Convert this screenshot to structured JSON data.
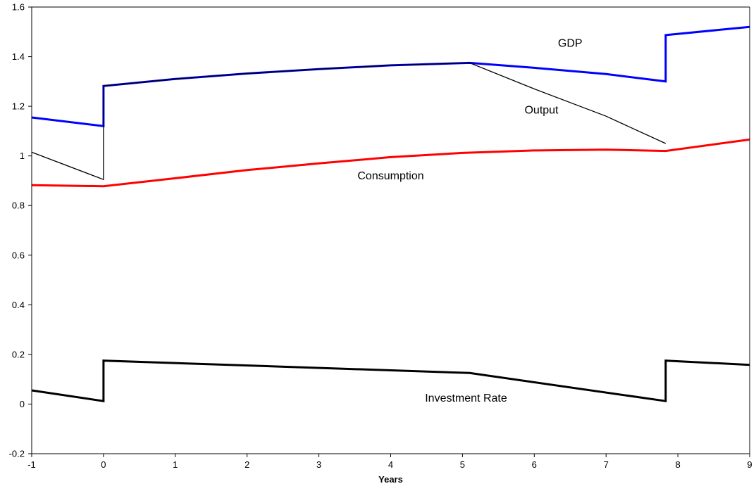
{
  "chart_data": {
    "type": "line",
    "title": "",
    "xlabel": "Years",
    "ylabel": "",
    "xlim": [
      -1,
      9
    ],
    "ylim": [
      -0.2,
      1.6
    ],
    "x_ticks": [
      "-1",
      "0",
      "1",
      "2",
      "3",
      "4",
      "5",
      "6",
      "7",
      "8",
      "9"
    ],
    "y_ticks": [
      "-0.2",
      "0",
      "0.2",
      "0.4",
      "0.6",
      "0.8",
      "1",
      "1.2",
      "1.4",
      "1.6"
    ],
    "grid": false,
    "legend": "none",
    "series": [
      {
        "name": "GDP",
        "color": "#0000ff",
        "width": "thick",
        "points": [
          [
            -1,
            1.155
          ],
          [
            0,
            1.12
          ],
          [
            0,
            1.282
          ],
          [
            1,
            1.31
          ],
          [
            2,
            1.332
          ],
          [
            3,
            1.35
          ],
          [
            4,
            1.365
          ],
          [
            5.1,
            1.375
          ],
          [
            6,
            1.355
          ],
          [
            7,
            1.33
          ],
          [
            7.83,
            1.3
          ],
          [
            7.83,
            1.487
          ],
          [
            9,
            1.52
          ]
        ]
      },
      {
        "name": "Output",
        "color": "#000000",
        "width": "thin",
        "points": [
          [
            -1,
            1.015
          ],
          [
            0,
            0.905
          ],
          [
            0,
            1.282
          ],
          [
            1,
            1.31
          ],
          [
            2,
            1.332
          ],
          [
            3,
            1.35
          ],
          [
            4,
            1.365
          ],
          [
            5.1,
            1.375
          ],
          [
            6,
            1.27
          ],
          [
            7,
            1.16
          ],
          [
            7.83,
            1.05
          ]
        ]
      },
      {
        "name": "Consumption",
        "color": "#ff0000",
        "width": "thick",
        "points": [
          [
            -1,
            0.882
          ],
          [
            0,
            0.878
          ],
          [
            1,
            0.91
          ],
          [
            2,
            0.943
          ],
          [
            3,
            0.97
          ],
          [
            4,
            0.995
          ],
          [
            5,
            1.012
          ],
          [
            6,
            1.022
          ],
          [
            7,
            1.025
          ],
          [
            7.83,
            1.02
          ],
          [
            9,
            1.066
          ]
        ]
      },
      {
        "name": "Investment Rate",
        "color": "#000000",
        "width": "thick",
        "points": [
          [
            -1,
            0.055
          ],
          [
            0,
            0.012
          ],
          [
            0,
            0.175
          ],
          [
            5.1,
            0.125
          ],
          [
            7.83,
            0.012
          ],
          [
            7.83,
            0.175
          ],
          [
            9,
            0.158
          ]
        ]
      }
    ],
    "annotations": [
      {
        "text": "GDP",
        "x": 6.5,
        "y": 1.44
      },
      {
        "text": "Output",
        "x": 6.1,
        "y": 1.17
      },
      {
        "text": "Consumption",
        "x": 4.0,
        "y": 0.905
      },
      {
        "text": "Investment Rate",
        "x": 5.05,
        "y": 0.01
      }
    ]
  }
}
